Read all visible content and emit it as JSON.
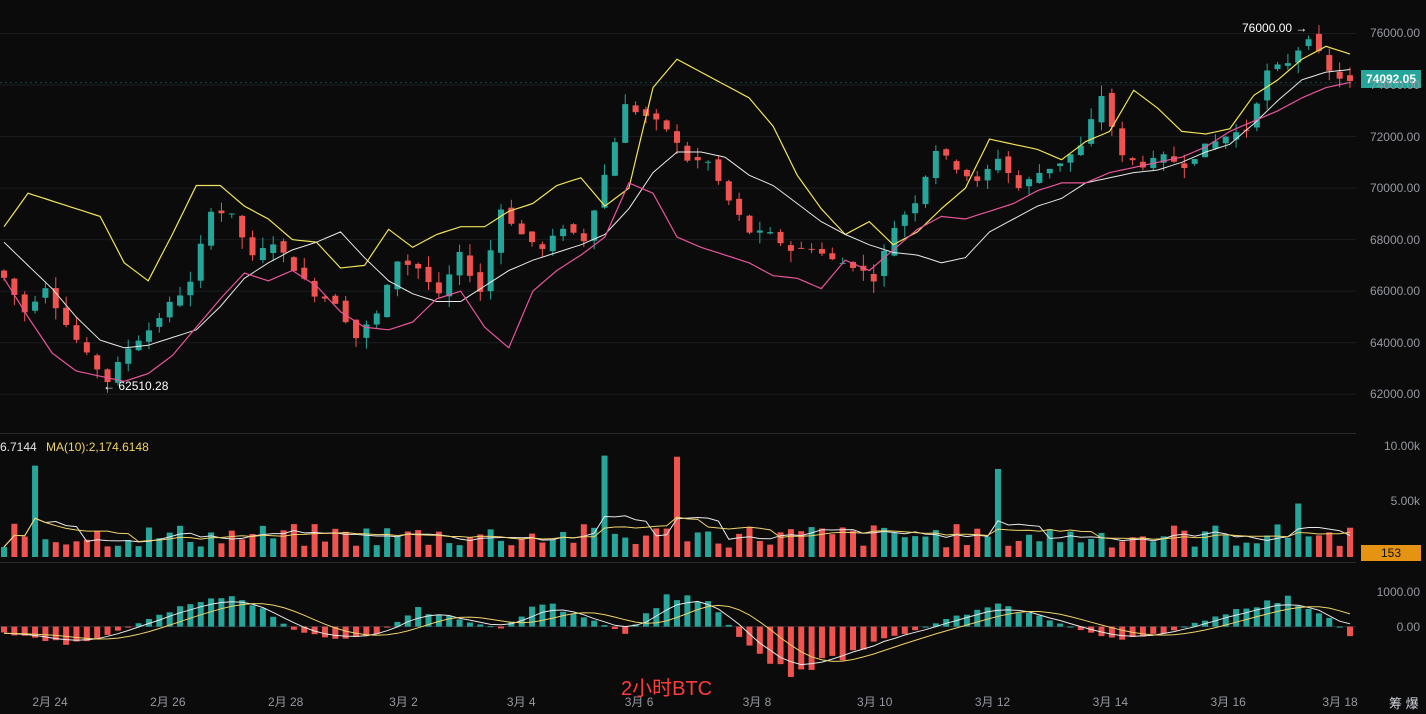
{
  "chart_data": {
    "type": "candlestick",
    "watermark": "2小时BTC",
    "x_ticks": [
      "2月 24",
      "2月 26",
      "2月 28",
      "3月 2",
      "3月 4",
      "3月 6",
      "3月 8",
      "3月 10",
      "3月 12",
      "3月 14",
      "3月 16",
      "3月 18"
    ],
    "price_axis": {
      "ticks": [
        "76000.00",
        "74000.00",
        "72000.00",
        "70000.00",
        "68000.00",
        "66000.00",
        "64000.00",
        "62000.00"
      ],
      "ylim": [
        61000,
        76600
      ]
    },
    "last_price": "74092.05",
    "annotations": {
      "high": "76000.00",
      "low": "62510.28"
    },
    "close_path": [
      [
        0,
        66500
      ],
      [
        2,
        65200
      ],
      [
        4,
        66200
      ],
      [
        6,
        64700
      ],
      [
        8,
        63500
      ],
      [
        10,
        62510
      ],
      [
        12,
        63800
      ],
      [
        14,
        64500
      ],
      [
        16,
        65500
      ],
      [
        18,
        66300
      ],
      [
        20,
        69200
      ],
      [
        22,
        68900
      ],
      [
        24,
        67300
      ],
      [
        26,
        67900
      ],
      [
        28,
        66900
      ],
      [
        30,
        65900
      ],
      [
        32,
        65600
      ],
      [
        34,
        64200
      ],
      [
        36,
        65100
      ],
      [
        38,
        67200
      ],
      [
        40,
        66900
      ],
      [
        42,
        65800
      ],
      [
        44,
        67400
      ],
      [
        46,
        66000
      ],
      [
        48,
        69200
      ],
      [
        50,
        68200
      ],
      [
        52,
        67600
      ],
      [
        54,
        68500
      ],
      [
        56,
        68000
      ],
      [
        58,
        70500
      ],
      [
        60,
        73200
      ],
      [
        62,
        72800
      ],
      [
        64,
        72300
      ],
      [
        66,
        71100
      ],
      [
        68,
        71000
      ],
      [
        70,
        69500
      ],
      [
        72,
        68300
      ],
      [
        74,
        68200
      ],
      [
        76,
        67600
      ],
      [
        78,
        67700
      ],
      [
        80,
        67200
      ],
      [
        82,
        67000
      ],
      [
        84,
        66500
      ],
      [
        86,
        68500
      ],
      [
        88,
        69500
      ],
      [
        90,
        71500
      ],
      [
        92,
        70800
      ],
      [
        94,
        70200
      ],
      [
        96,
        71200
      ],
      [
        98,
        70000
      ],
      [
        100,
        70600
      ],
      [
        102,
        71000
      ],
      [
        104,
        71600
      ],
      [
        106,
        73600
      ],
      [
        108,
        71200
      ],
      [
        110,
        70900
      ],
      [
        112,
        71200
      ],
      [
        114,
        70900
      ],
      [
        116,
        71600
      ],
      [
        118,
        72000
      ],
      [
        120,
        72300
      ],
      [
        122,
        74500
      ],
      [
        124,
        74900
      ],
      [
        126,
        75900
      ],
      [
        128,
        74500
      ],
      [
        130,
        74092
      ]
    ],
    "bollinger": {
      "upper": [
        [
          0,
          68500
        ],
        [
          2,
          69800
        ],
        [
          4,
          69500
        ],
        [
          6,
          69200
        ],
        [
          8,
          68900
        ],
        [
          10,
          67100
        ],
        [
          12,
          66400
        ],
        [
          14,
          68200
        ],
        [
          16,
          70100
        ],
        [
          18,
          70100
        ],
        [
          20,
          69300
        ],
        [
          22,
          68800
        ],
        [
          24,
          68000
        ],
        [
          26,
          67900
        ],
        [
          28,
          66900
        ],
        [
          30,
          67000
        ],
        [
          32,
          68400
        ],
        [
          34,
          67700
        ],
        [
          36,
          68200
        ],
        [
          38,
          68500
        ],
        [
          40,
          68500
        ],
        [
          42,
          69100
        ],
        [
          44,
          69400
        ],
        [
          46,
          70100
        ],
        [
          48,
          70400
        ],
        [
          50,
          69300
        ],
        [
          52,
          70000
        ],
        [
          54,
          73900
        ],
        [
          56,
          75000
        ],
        [
          58,
          74500
        ],
        [
          60,
          74000
        ],
        [
          62,
          73500
        ],
        [
          64,
          72400
        ],
        [
          66,
          70500
        ],
        [
          68,
          69200
        ],
        [
          70,
          68200
        ],
        [
          72,
          68700
        ],
        [
          74,
          67800
        ],
        [
          76,
          68300
        ],
        [
          78,
          69200
        ],
        [
          80,
          70000
        ],
        [
          82,
          71900
        ],
        [
          84,
          71700
        ],
        [
          86,
          71500
        ],
        [
          88,
          71100
        ],
        [
          90,
          71800
        ],
        [
          92,
          72200
        ],
        [
          94,
          73800
        ],
        [
          96,
          73100
        ],
        [
          98,
          72200
        ],
        [
          100,
          72100
        ],
        [
          102,
          72300
        ],
        [
          104,
          73600
        ],
        [
          106,
          74200
        ],
        [
          108,
          75000
        ],
        [
          110,
          75500
        ],
        [
          112,
          75200
        ]
      ],
      "middle": [
        [
          0,
          67900
        ],
        [
          2,
          67000
        ],
        [
          4,
          66100
        ],
        [
          6,
          65000
        ],
        [
          8,
          64100
        ],
        [
          10,
          63800
        ],
        [
          12,
          63900
        ],
        [
          14,
          64200
        ],
        [
          16,
          64500
        ],
        [
          18,
          65400
        ],
        [
          20,
          66500
        ],
        [
          22,
          67100
        ],
        [
          24,
          67600
        ],
        [
          26,
          67900
        ],
        [
          28,
          68300
        ],
        [
          30,
          67300
        ],
        [
          32,
          66400
        ],
        [
          34,
          65900
        ],
        [
          36,
          65600
        ],
        [
          38,
          65600
        ],
        [
          40,
          66200
        ],
        [
          42,
          66800
        ],
        [
          44,
          67200
        ],
        [
          46,
          67500
        ],
        [
          48,
          67800
        ],
        [
          50,
          68200
        ],
        [
          52,
          69200
        ],
        [
          54,
          70600
        ],
        [
          56,
          71400
        ],
        [
          58,
          71400
        ],
        [
          60,
          71200
        ],
        [
          62,
          70500
        ],
        [
          64,
          70100
        ],
        [
          66,
          69400
        ],
        [
          68,
          68700
        ],
        [
          70,
          68200
        ],
        [
          72,
          67800
        ],
        [
          74,
          67500
        ],
        [
          76,
          67400
        ],
        [
          78,
          67100
        ],
        [
          80,
          67300
        ],
        [
          82,
          68300
        ],
        [
          84,
          68800
        ],
        [
          86,
          69300
        ],
        [
          88,
          69600
        ],
        [
          90,
          70200
        ],
        [
          92,
          70400
        ],
        [
          94,
          70600
        ],
        [
          96,
          70700
        ],
        [
          98,
          71000
        ],
        [
          100,
          71400
        ],
        [
          102,
          71700
        ],
        [
          104,
          72500
        ],
        [
          106,
          73400
        ],
        [
          108,
          74200
        ],
        [
          110,
          74500
        ],
        [
          112,
          74600
        ]
      ],
      "lower": [
        [
          0,
          66500
        ],
        [
          2,
          65000
        ],
        [
          4,
          63600
        ],
        [
          6,
          62900
        ],
        [
          8,
          62700
        ],
        [
          10,
          62500
        ],
        [
          12,
          62800
        ],
        [
          14,
          63500
        ],
        [
          16,
          64600
        ],
        [
          18,
          65700
        ],
        [
          20,
          66700
        ],
        [
          22,
          66400
        ],
        [
          24,
          66800
        ],
        [
          26,
          66200
        ],
        [
          28,
          65200
        ],
        [
          30,
          64600
        ],
        [
          32,
          64500
        ],
        [
          34,
          64800
        ],
        [
          36,
          65700
        ],
        [
          38,
          66000
        ],
        [
          40,
          64600
        ],
        [
          42,
          63800
        ],
        [
          44,
          66000
        ],
        [
          46,
          66800
        ],
        [
          48,
          67400
        ],
        [
          50,
          68100
        ],
        [
          52,
          70200
        ],
        [
          54,
          69800
        ],
        [
          56,
          68100
        ],
        [
          58,
          67700
        ],
        [
          60,
          67400
        ],
        [
          62,
          67100
        ],
        [
          64,
          66600
        ],
        [
          66,
          66500
        ],
        [
          68,
          66100
        ],
        [
          70,
          67200
        ],
        [
          72,
          66800
        ],
        [
          74,
          67600
        ],
        [
          76,
          68400
        ],
        [
          78,
          68900
        ],
        [
          80,
          68800
        ],
        [
          82,
          69100
        ],
        [
          84,
          69400
        ],
        [
          86,
          69900
        ],
        [
          88,
          70200
        ],
        [
          90,
          70200
        ],
        [
          92,
          70600
        ],
        [
          94,
          70800
        ],
        [
          96,
          71000
        ],
        [
          98,
          71200
        ],
        [
          100,
          71600
        ],
        [
          102,
          72200
        ],
        [
          104,
          72600
        ],
        [
          106,
          73000
        ],
        [
          108,
          73500
        ],
        [
          110,
          73900
        ],
        [
          112,
          74100
        ]
      ]
    },
    "volume": {
      "legend_ma_a": "6.7144",
      "legend_ma_b": "MA(10):2,174.6148",
      "ticks": [
        "10.00k",
        "5.00k"
      ],
      "ylim": [
        0,
        10500
      ],
      "last_value": "153",
      "spikes": [
        [
          3,
          8200
        ],
        [
          58,
          9100
        ],
        [
          65,
          9000
        ],
        [
          96,
          7900
        ],
        [
          125,
          4800
        ]
      ]
    },
    "macd": {
      "ticks": [
        "1000.00",
        "0.00"
      ],
      "ylim": [
        -1800,
        1600
      ],
      "histogram_path": [
        [
          0,
          -200
        ],
        [
          6,
          -500
        ],
        [
          10,
          -250
        ],
        [
          14,
          200
        ],
        [
          20,
          900
        ],
        [
          24,
          700
        ],
        [
          28,
          -100
        ],
        [
          32,
          -350
        ],
        [
          36,
          -200
        ],
        [
          40,
          500
        ],
        [
          44,
          200
        ],
        [
          48,
          -50
        ],
        [
          52,
          700
        ],
        [
          56,
          300
        ],
        [
          60,
          -200
        ],
        [
          64,
          900
        ],
        [
          68,
          700
        ],
        [
          72,
          -600
        ],
        [
          76,
          -1300
        ],
        [
          80,
          -1000
        ],
        [
          84,
          -500
        ],
        [
          88,
          -100
        ],
        [
          92,
          300
        ],
        [
          96,
          600
        ],
        [
          100,
          300
        ],
        [
          104,
          -100
        ],
        [
          108,
          -400
        ],
        [
          112,
          -200
        ],
        [
          116,
          200
        ],
        [
          120,
          600
        ],
        [
          124,
          800
        ],
        [
          128,
          300
        ],
        [
          130,
          -300
        ]
      ]
    }
  }
}
